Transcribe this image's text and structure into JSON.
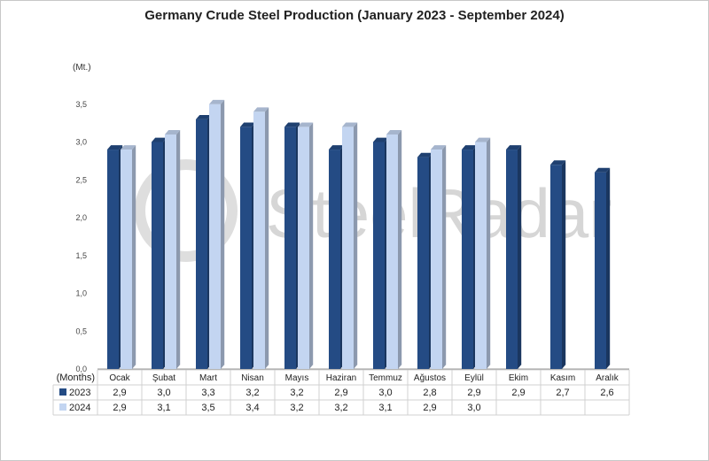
{
  "chart_data": {
    "type": "bar",
    "title": "Germany Crude Steel Production (January 2023 - September 2024)",
    "ylabel": "(Mt.)",
    "xlabel": "(Months)",
    "ylim": [
      0,
      4.0
    ],
    "yticks": [
      "0,0",
      "0,5",
      "1,0",
      "1,5",
      "2,0",
      "2,5",
      "3,0",
      "3,5"
    ],
    "categories": [
      "Ocak",
      "Şubat",
      "Mart",
      "Nisan",
      "Mayıs",
      "Haziran",
      "Temmuz",
      "Ağustos",
      "Eylül",
      "Ekim",
      "Kasım",
      "Aralık"
    ],
    "series": [
      {
        "name": "2023",
        "color": "#244b84",
        "values": [
          2.9,
          3.0,
          3.3,
          3.2,
          3.2,
          2.9,
          3.0,
          2.8,
          2.9,
          2.9,
          2.7,
          2.6
        ],
        "labels": [
          "2,9",
          "3,0",
          "3,3",
          "3,2",
          "3,2",
          "2,9",
          "3,0",
          "2,8",
          "2,9",
          "2,9",
          "2,7",
          "2,6"
        ]
      },
      {
        "name": "2024",
        "color": "#c3d5f1",
        "values": [
          2.9,
          3.1,
          3.5,
          3.4,
          3.2,
          3.2,
          3.1,
          2.9,
          3.0,
          null,
          null,
          null
        ],
        "labels": [
          "2,9",
          "3,1",
          "3,5",
          "3,4",
          "3,2",
          "3,2",
          "3,1",
          "2,9",
          "3,0",
          "",
          "",
          ""
        ]
      }
    ],
    "grid": false,
    "legend": "data-table"
  },
  "watermark": "SteelRadar"
}
